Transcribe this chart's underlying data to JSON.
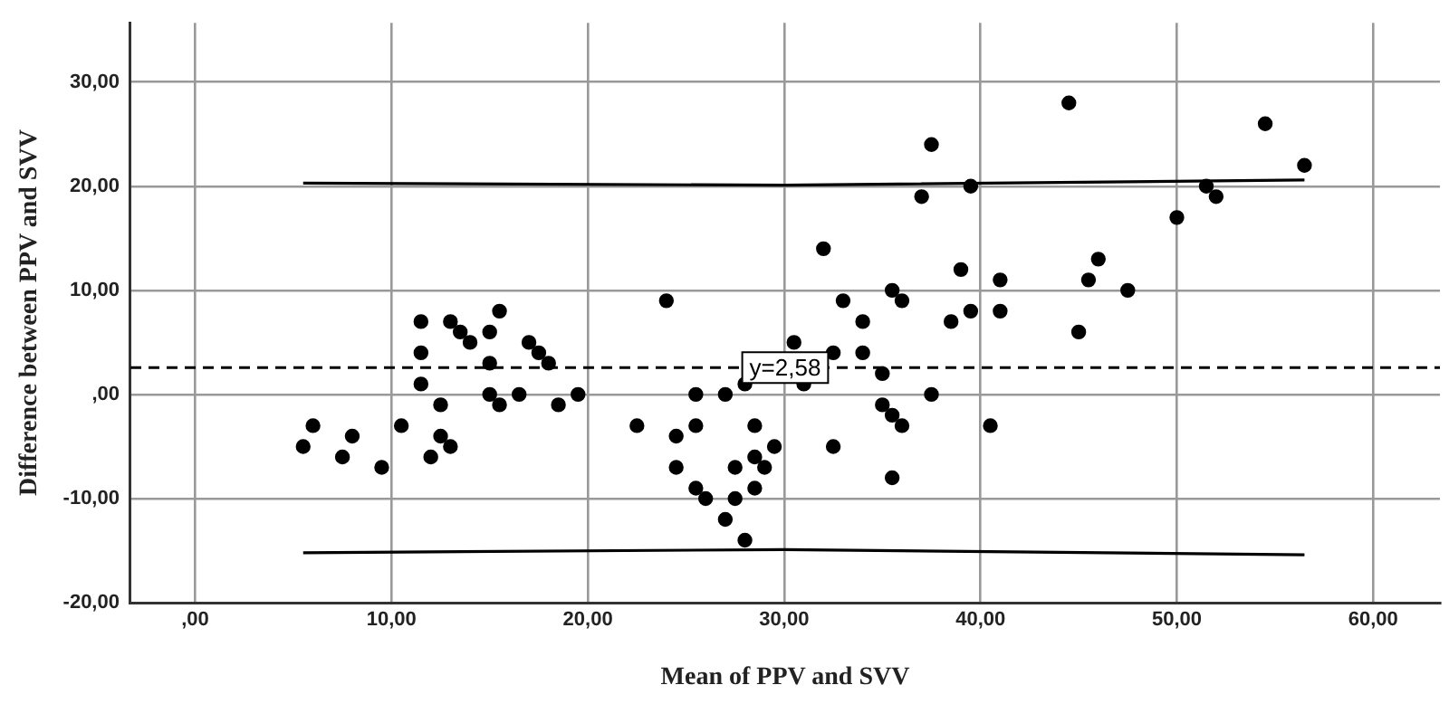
{
  "chart_data": {
    "type": "scatter",
    "xlabel": "Mean of PPV and SVV",
    "ylabel": "Difference between PPV and SVV",
    "xlim": [
      -3.3,
      63.4
    ],
    "ylim": [
      -20,
      35.7
    ],
    "xticks": [
      {
        "value": 0,
        "label": ",00"
      },
      {
        "value": 10,
        "label": "10,00"
      },
      {
        "value": 20,
        "label": "20,00"
      },
      {
        "value": 30,
        "label": "30,00"
      },
      {
        "value": 40,
        "label": "40,00"
      },
      {
        "value": 50,
        "label": "50,00"
      },
      {
        "value": 60,
        "label": "60,00"
      }
    ],
    "yticks": [
      {
        "value": -20,
        "label": "-20,00"
      },
      {
        "value": -10,
        "label": "-10,00"
      },
      {
        "value": 0,
        "label": ",00"
      },
      {
        "value": 10,
        "label": "10,00"
      },
      {
        "value": 20,
        "label": "20,00"
      },
      {
        "value": 30,
        "label": "30,00"
      }
    ],
    "grid": true,
    "legend": false,
    "marker": "circle",
    "series": [
      {
        "type": "scatter",
        "color": "#000000",
        "x": [
          5.5,
          6.0,
          7.5,
          8.0,
          9.5,
          10.5,
          11.5,
          11.5,
          11.5,
          12.0,
          12.5,
          12.5,
          13.0,
          13.0,
          13.5,
          14.0,
          15.0,
          15.0,
          15.0,
          15.5,
          15.5,
          16.5,
          17.0,
          17.5,
          18.0,
          18.5,
          19.5,
          22.5,
          24.0,
          24.5,
          24.5,
          25.5,
          25.5,
          25.5,
          26.0,
          27.0,
          27.0,
          27.5,
          27.5,
          28.0,
          28.0,
          28.5,
          28.5,
          28.5,
          29.0,
          29.5,
          30.5,
          31.0,
          32.0,
          32.5,
          32.5,
          33.0,
          34.0,
          34.0,
          35.0,
          35.0,
          35.5,
          35.5,
          35.5,
          36.0,
          36.0,
          37.0,
          37.5,
          37.5,
          38.5,
          39.0,
          39.5,
          39.5,
          40.5,
          41.0,
          41.0,
          44.5,
          45.0,
          45.5,
          46.0,
          47.5,
          50.0,
          51.5,
          52.0,
          54.5,
          56.5
        ],
        "values": [
          -5,
          -3,
          -6,
          -4,
          -7,
          -3,
          7,
          4,
          1,
          -6,
          -1,
          -4,
          7,
          -5,
          6,
          5,
          6,
          3,
          0,
          8,
          -1,
          0,
          5,
          4,
          3,
          -1,
          0,
          -3,
          9,
          -4,
          -7,
          0,
          -3,
          -9,
          -10,
          0,
          -12,
          -7,
          -10,
          -14,
          1,
          -3,
          -6,
          -9,
          -7,
          -5,
          5,
          1,
          14,
          4,
          -5,
          9,
          7,
          4,
          2,
          -1,
          10,
          -2,
          -8,
          9,
          -3,
          19,
          24,
          0,
          7,
          12,
          20,
          8,
          -3,
          11,
          8,
          28,
          6,
          11,
          13,
          10,
          17,
          20,
          19,
          26,
          22
        ]
      },
      {
        "type": "line",
        "color": "#000000",
        "marker": "none",
        "x": [
          5.5,
          30,
          56.5
        ],
        "values": [
          20.3,
          20.1,
          20.6
        ]
      },
      {
        "type": "line",
        "color": "#000000",
        "marker": "none",
        "x": [
          5.5,
          30,
          56.5
        ],
        "values": [
          -15.2,
          -14.9,
          -15.4
        ]
      }
    ],
    "ref_lines": [
      {
        "axis": "y",
        "value": 2.58,
        "label": "y=2,58",
        "line_style": "dashed",
        "color": "#000000"
      }
    ]
  }
}
